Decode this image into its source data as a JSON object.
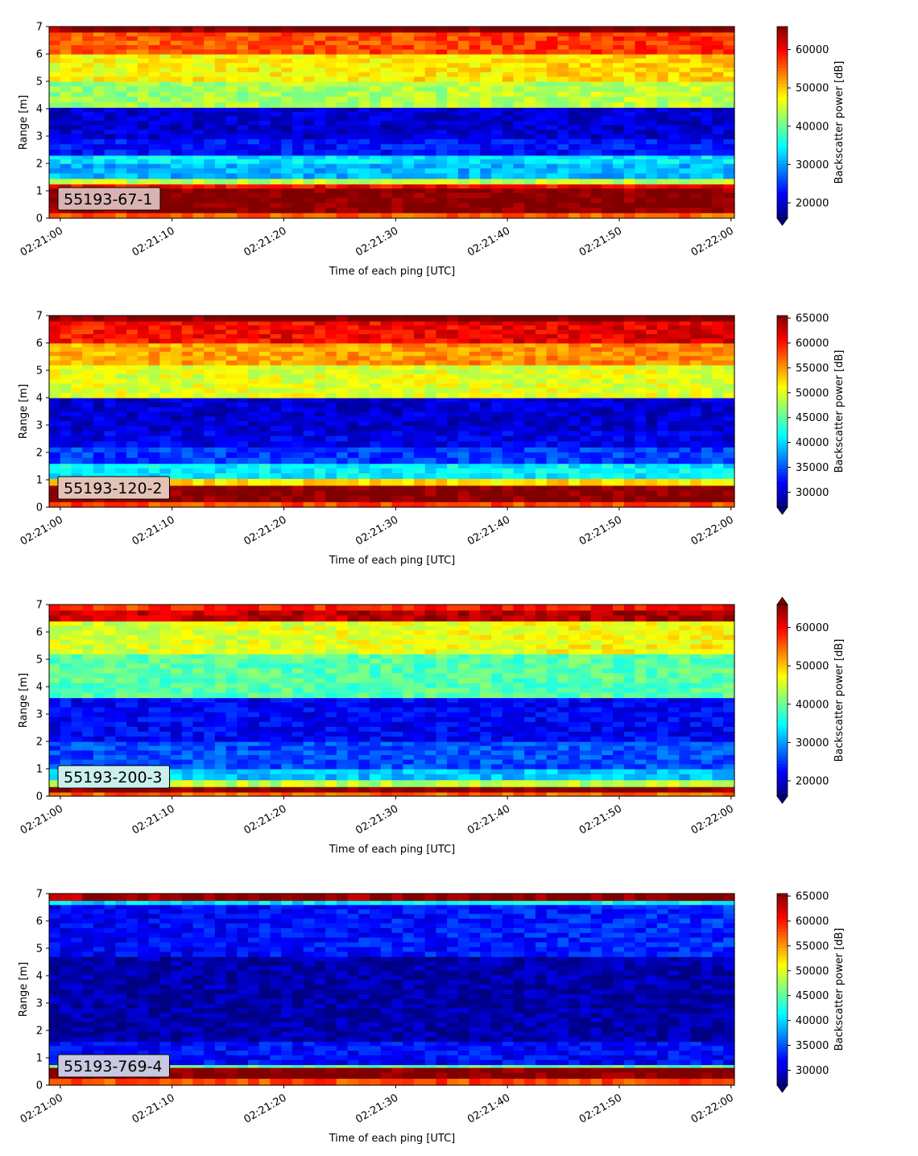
{
  "chart_data": [
    {
      "type": "heatmap",
      "xlabel": "Time of each ping [UTC]",
      "ylabel": "Range [m]",
      "xticks": [
        "02:21:00",
        "02:21:10",
        "02:21:20",
        "02:21:30",
        "02:21:40",
        "02:21:50",
        "02:22:00"
      ],
      "xlim_seconds": [
        -1,
        60.3
      ],
      "yticks": [
        0,
        1,
        2,
        3,
        4,
        5,
        6,
        7
      ],
      "ylim": [
        0,
        7
      ],
      "label_box": "55193-67-1",
      "label_box_color": "#d9b3b3",
      "colorbar": {
        "label": "Backscatter power [dB]",
        "ticks": [
          20000,
          30000,
          40000,
          50000,
          60000
        ],
        "range": [
          16000,
          66000
        ],
        "extend": "min"
      },
      "bands": [
        {
          "y": [
            0.0,
            0.2
          ],
          "value": 55000
        },
        {
          "y": [
            0.2,
            1.1
          ],
          "value": 66000
        },
        {
          "y": [
            1.1,
            1.25
          ],
          "value": 60000
        },
        {
          "y": [
            1.25,
            1.45
          ],
          "value": 44000
        },
        {
          "y": [
            1.45,
            2.0
          ],
          "value": 31000
        },
        {
          "y": [
            2.0,
            2.3
          ],
          "value": 34000
        },
        {
          "y": [
            2.3,
            2.9
          ],
          "value": 23000
        },
        {
          "y": [
            2.9,
            4.05
          ],
          "value": 20000
        },
        {
          "y": [
            4.05,
            5.0
          ],
          "value": 42000
        },
        {
          "y": [
            5.0,
            6.0
          ],
          "value": 47000
        },
        {
          "y": [
            6.0,
            6.8
          ],
          "value": 55000
        },
        {
          "y": [
            6.8,
            7.0
          ],
          "value": 65000
        }
      ]
    },
    {
      "type": "heatmap",
      "xlabel": "Time of each ping [UTC]",
      "ylabel": "Range [m]",
      "xticks": [
        "02:21:00",
        "02:21:10",
        "02:21:20",
        "02:21:30",
        "02:21:40",
        "02:21:50",
        "02:22:00"
      ],
      "xlim_seconds": [
        -1,
        60.3
      ],
      "yticks": [
        0,
        1,
        2,
        3,
        4,
        5,
        6,
        7
      ],
      "ylim": [
        0,
        7
      ],
      "label_box": "55193-120-2",
      "label_box_color": "#e3c3b8",
      "colorbar": {
        "label": "Backscatter power [dB]",
        "ticks": [
          30000,
          35000,
          40000,
          45000,
          50000,
          55000,
          60000,
          65000
        ],
        "range": [
          27000,
          65500
        ],
        "extend": "min"
      },
      "bands": [
        {
          "y": [
            0.0,
            0.2
          ],
          "value": 58000
        },
        {
          "y": [
            0.2,
            0.8
          ],
          "value": 65500
        },
        {
          "y": [
            0.8,
            1.05
          ],
          "value": 52000
        },
        {
          "y": [
            1.05,
            1.6
          ],
          "value": 41000
        },
        {
          "y": [
            1.6,
            2.2
          ],
          "value": 34000
        },
        {
          "y": [
            2.2,
            2.8
          ],
          "value": 31000
        },
        {
          "y": [
            2.8,
            4.0
          ],
          "value": 30000
        },
        {
          "y": [
            4.0,
            5.2
          ],
          "value": 50000
        },
        {
          "y": [
            5.2,
            6.0
          ],
          "value": 54000
        },
        {
          "y": [
            6.0,
            6.8
          ],
          "value": 60000
        },
        {
          "y": [
            6.8,
            7.0
          ],
          "value": 65000
        }
      ]
    },
    {
      "type": "heatmap",
      "xlabel": "Time of each ping [UTC]",
      "ylabel": "Range [m]",
      "xticks": [
        "02:21:00",
        "02:21:10",
        "02:21:20",
        "02:21:30",
        "02:21:40",
        "02:21:50",
        "02:22:00"
      ],
      "xlim_seconds": [
        -1,
        60.3
      ],
      "yticks": [
        0,
        1,
        2,
        3,
        4,
        5,
        6,
        7
      ],
      "ylim": [
        0,
        7
      ],
      "label_box": "55193-200-3",
      "label_box_color": "#c9f0ec",
      "colorbar": {
        "label": "Backscatter power [dB]",
        "ticks": [
          20000,
          30000,
          40000,
          50000,
          60000
        ],
        "range": [
          16000,
          66000
        ],
        "extend": "both"
      },
      "bands": [
        {
          "y": [
            0.0,
            0.15
          ],
          "value": 55000
        },
        {
          "y": [
            0.15,
            0.35
          ],
          "value": 66000
        },
        {
          "y": [
            0.35,
            0.6
          ],
          "value": 44000
        },
        {
          "y": [
            0.6,
            1.0
          ],
          "value": 32000
        },
        {
          "y": [
            1.0,
            2.0
          ],
          "value": 26000
        },
        {
          "y": [
            2.0,
            3.6
          ],
          "value": 22000
        },
        {
          "y": [
            3.6,
            5.2
          ],
          "value": 39000
        },
        {
          "y": [
            5.2,
            6.4
          ],
          "value": 45000
        },
        {
          "y": [
            6.4,
            6.8
          ],
          "value": 62000
        },
        {
          "y": [
            6.8,
            7.0
          ],
          "value": 57000
        }
      ]
    },
    {
      "type": "heatmap",
      "xlabel": "Time of each ping [UTC]",
      "ylabel": "Range [m]",
      "xticks": [
        "02:21:00",
        "02:21:10",
        "02:21:20",
        "02:21:30",
        "02:21:40",
        "02:21:50",
        "02:22:00"
      ],
      "xlim_seconds": [
        -1,
        60.3
      ],
      "yticks": [
        0,
        1,
        2,
        3,
        4,
        5,
        6,
        7
      ],
      "ylim": [
        0,
        7
      ],
      "label_box": "55193-769-4",
      "label_box_color": "#c8c8e0",
      "colorbar": {
        "label": "Backscatter power [dB]",
        "ticks": [
          30000,
          35000,
          40000,
          45000,
          50000,
          55000,
          60000,
          65000
        ],
        "range": [
          27000,
          65500
        ],
        "extend": "min"
      },
      "bands": [
        {
          "y": [
            0.0,
            0.25
          ],
          "value": 58000
        },
        {
          "y": [
            0.25,
            0.65
          ],
          "value": 65500
        },
        {
          "y": [
            0.65,
            0.75
          ],
          "value": 45000
        },
        {
          "y": [
            0.75,
            1.6
          ],
          "value": 32000
        },
        {
          "y": [
            1.6,
            4.7
          ],
          "value": 28500
        },
        {
          "y": [
            4.7,
            6.6
          ],
          "value": 31500
        },
        {
          "y": [
            6.6,
            6.75
          ],
          "value": 40000
        },
        {
          "y": [
            6.75,
            7.0
          ],
          "value": 64000
        }
      ]
    }
  ]
}
